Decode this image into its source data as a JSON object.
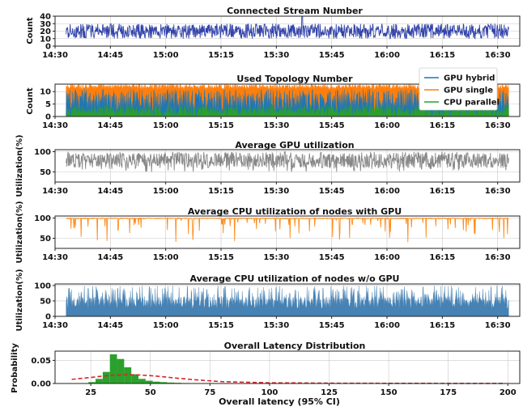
{
  "chart_data": [
    {
      "type": "line",
      "title": "Connected Stream Number",
      "ylabel": "Count",
      "xlabel": "",
      "xlim": [
        "14:30",
        "16:36"
      ],
      "x_ticks": [
        "14:30",
        "14:45",
        "15:00",
        "15:15",
        "15:30",
        "15:45",
        "16:00",
        "16:15",
        "16:30"
      ],
      "ylim": [
        0,
        40
      ],
      "y_ticks": [
        0,
        10,
        20,
        30,
        40
      ],
      "x_range": [
        "14:33",
        "16:33"
      ],
      "grid": true,
      "series": [
        {
          "color": "#3344aa",
          "center": 20,
          "low": 10,
          "high": 30,
          "peak": 40,
          "peak_time": "15:37",
          "fill": false
        }
      ]
    },
    {
      "type": "area",
      "title": "Used Topology Number",
      "ylabel": "Count",
      "xlabel": "",
      "xlim": [
        "14:30",
        "16:36"
      ],
      "x_ticks": [
        "14:30",
        "14:45",
        "15:00",
        "15:15",
        "15:30",
        "15:45",
        "16:00",
        "16:15",
        "16:30"
      ],
      "ylim": [
        0,
        13
      ],
      "y_ticks": [
        0,
        5,
        10
      ],
      "x_range": [
        "14:33",
        "16:33"
      ],
      "grid": true,
      "legend": "top-right",
      "series": [
        {
          "name": "GPU hybrid",
          "color": "#1f77b4",
          "center": 6,
          "low": 2,
          "high": 11
        },
        {
          "name": "GPU single",
          "color": "#ff7f0e",
          "center": 12,
          "low": 11,
          "high": 13
        },
        {
          "name": "CPU parallel",
          "color": "#2ca02c",
          "center": 2,
          "low": 0,
          "high": 5
        }
      ]
    },
    {
      "type": "line",
      "title": "Average GPU utilization",
      "ylabel": "Utilization(%)",
      "xlabel": "",
      "xlim": [
        "14:30",
        "16:36"
      ],
      "x_ticks": [
        "14:30",
        "14:45",
        "15:00",
        "15:15",
        "15:30",
        "15:45",
        "16:00",
        "16:15",
        "16:30"
      ],
      "ylim": [
        25,
        105
      ],
      "y_ticks": [
        50,
        100
      ],
      "x_range": [
        "14:33",
        "16:33"
      ],
      "grid": true,
      "series": [
        {
          "color": "#888888",
          "center": 78,
          "low": 50,
          "high": 100,
          "fill": false
        }
      ]
    },
    {
      "type": "line",
      "title": "Average CPU utilization of nodes with GPU",
      "ylabel": "Utilization(%)",
      "xlabel": "",
      "xlim": [
        "14:30",
        "16:36"
      ],
      "x_ticks": [
        "14:30",
        "14:45",
        "15:00",
        "15:15",
        "15:30",
        "15:45",
        "16:00",
        "16:15",
        "16:30"
      ],
      "ylim": [
        25,
        105
      ],
      "y_ticks": [
        50,
        100
      ],
      "x_range": [
        "14:33",
        "16:33"
      ],
      "grid": true,
      "series": [
        {
          "color": "#ff8c1a",
          "center": 98,
          "low": 40,
          "high": 100,
          "fill": false
        }
      ]
    },
    {
      "type": "area",
      "title": "Average CPU utilization of nodes w/o GPU",
      "ylabel": "Utilization(%)",
      "xlabel": "",
      "xlim": [
        "14:30",
        "16:36"
      ],
      "x_ticks": [
        "14:30",
        "14:45",
        "15:00",
        "15:15",
        "15:30",
        "15:45",
        "16:00",
        "16:15",
        "16:30"
      ],
      "ylim": [
        0,
        105
      ],
      "y_ticks": [
        0,
        50,
        100
      ],
      "x_range": [
        "14:33",
        "16:33"
      ],
      "grid": true,
      "series": [
        {
          "color": "#4682b4",
          "center": 45,
          "low": 15,
          "high": 100,
          "fill": true
        }
      ]
    },
    {
      "type": "bar",
      "title": "Overall Latency Distribution",
      "ylabel": "Probability",
      "xlabel": "Overall latency (95% CI)",
      "xlim": [
        10,
        205
      ],
      "x_ticks": [
        25,
        50,
        75,
        100,
        125,
        150,
        175,
        200
      ],
      "ylim": [
        0,
        0.07
      ],
      "y_ticks": [
        0.0,
        0.05
      ],
      "y_tick_labels": [
        "0.00",
        "0.05"
      ],
      "grid": true,
      "histogram": {
        "color": "#2ca02c",
        "bin_width": 3,
        "bins": [
          {
            "x": 24,
            "p": 0.003
          },
          {
            "x": 27,
            "p": 0.01
          },
          {
            "x": 30,
            "p": 0.025
          },
          {
            "x": 33,
            "p": 0.063
          },
          {
            "x": 36,
            "p": 0.053
          },
          {
            "x": 39,
            "p": 0.035
          },
          {
            "x": 42,
            "p": 0.02
          },
          {
            "x": 45,
            "p": 0.01
          },
          {
            "x": 48,
            "p": 0.006
          },
          {
            "x": 51,
            "p": 0.004
          },
          {
            "x": 54,
            "p": 0.003
          },
          {
            "x": 57,
            "p": 0.002
          },
          {
            "x": 60,
            "p": 0.0015
          },
          {
            "x": 63,
            "p": 0.001
          },
          {
            "x": 66,
            "p": 0.0008
          },
          {
            "x": 69,
            "p": 0.0006
          }
        ]
      },
      "fit_curve": {
        "color": "#d62728",
        "style": "dashed",
        "x": [
          17,
          25,
          30,
          35,
          40,
          45,
          50,
          55,
          60,
          70,
          80,
          100,
          125,
          150,
          175,
          199
        ],
        "y": [
          0.009,
          0.013,
          0.016,
          0.018,
          0.019,
          0.0185,
          0.017,
          0.0148,
          0.012,
          0.0075,
          0.004,
          0.0015,
          0.0007,
          0.0004,
          0.0002,
          0.0001
        ]
      }
    }
  ]
}
